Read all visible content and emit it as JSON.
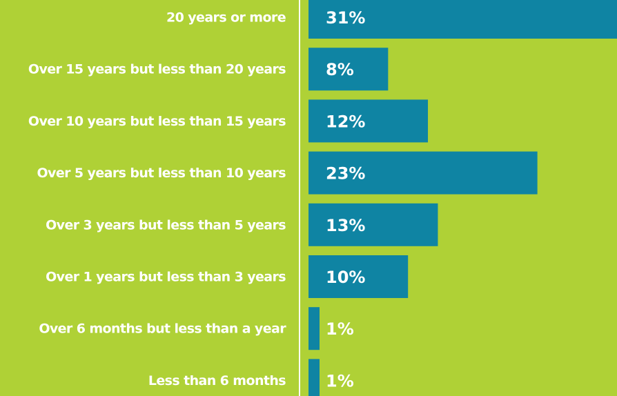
{
  "chart_data": {
    "type": "barh",
    "categories": [
      "20 years or more",
      "Over 15 years but less than 20 years",
      "Over 10 years but less than 15 years",
      "Over 5 years but less than 10 years",
      "Over 3 years but less than 5 years",
      "Over 1 years but less than 3 years",
      "Over 6 months but less than a year",
      "Less than 6 months"
    ],
    "values": [
      31,
      8,
      12,
      23,
      13,
      10,
      1,
      1
    ],
    "value_labels": [
      "31%",
      "8%",
      "12%",
      "23%",
      "13%",
      "10%",
      "1%",
      "1%"
    ],
    "color": "#0f84a3"
  }
}
